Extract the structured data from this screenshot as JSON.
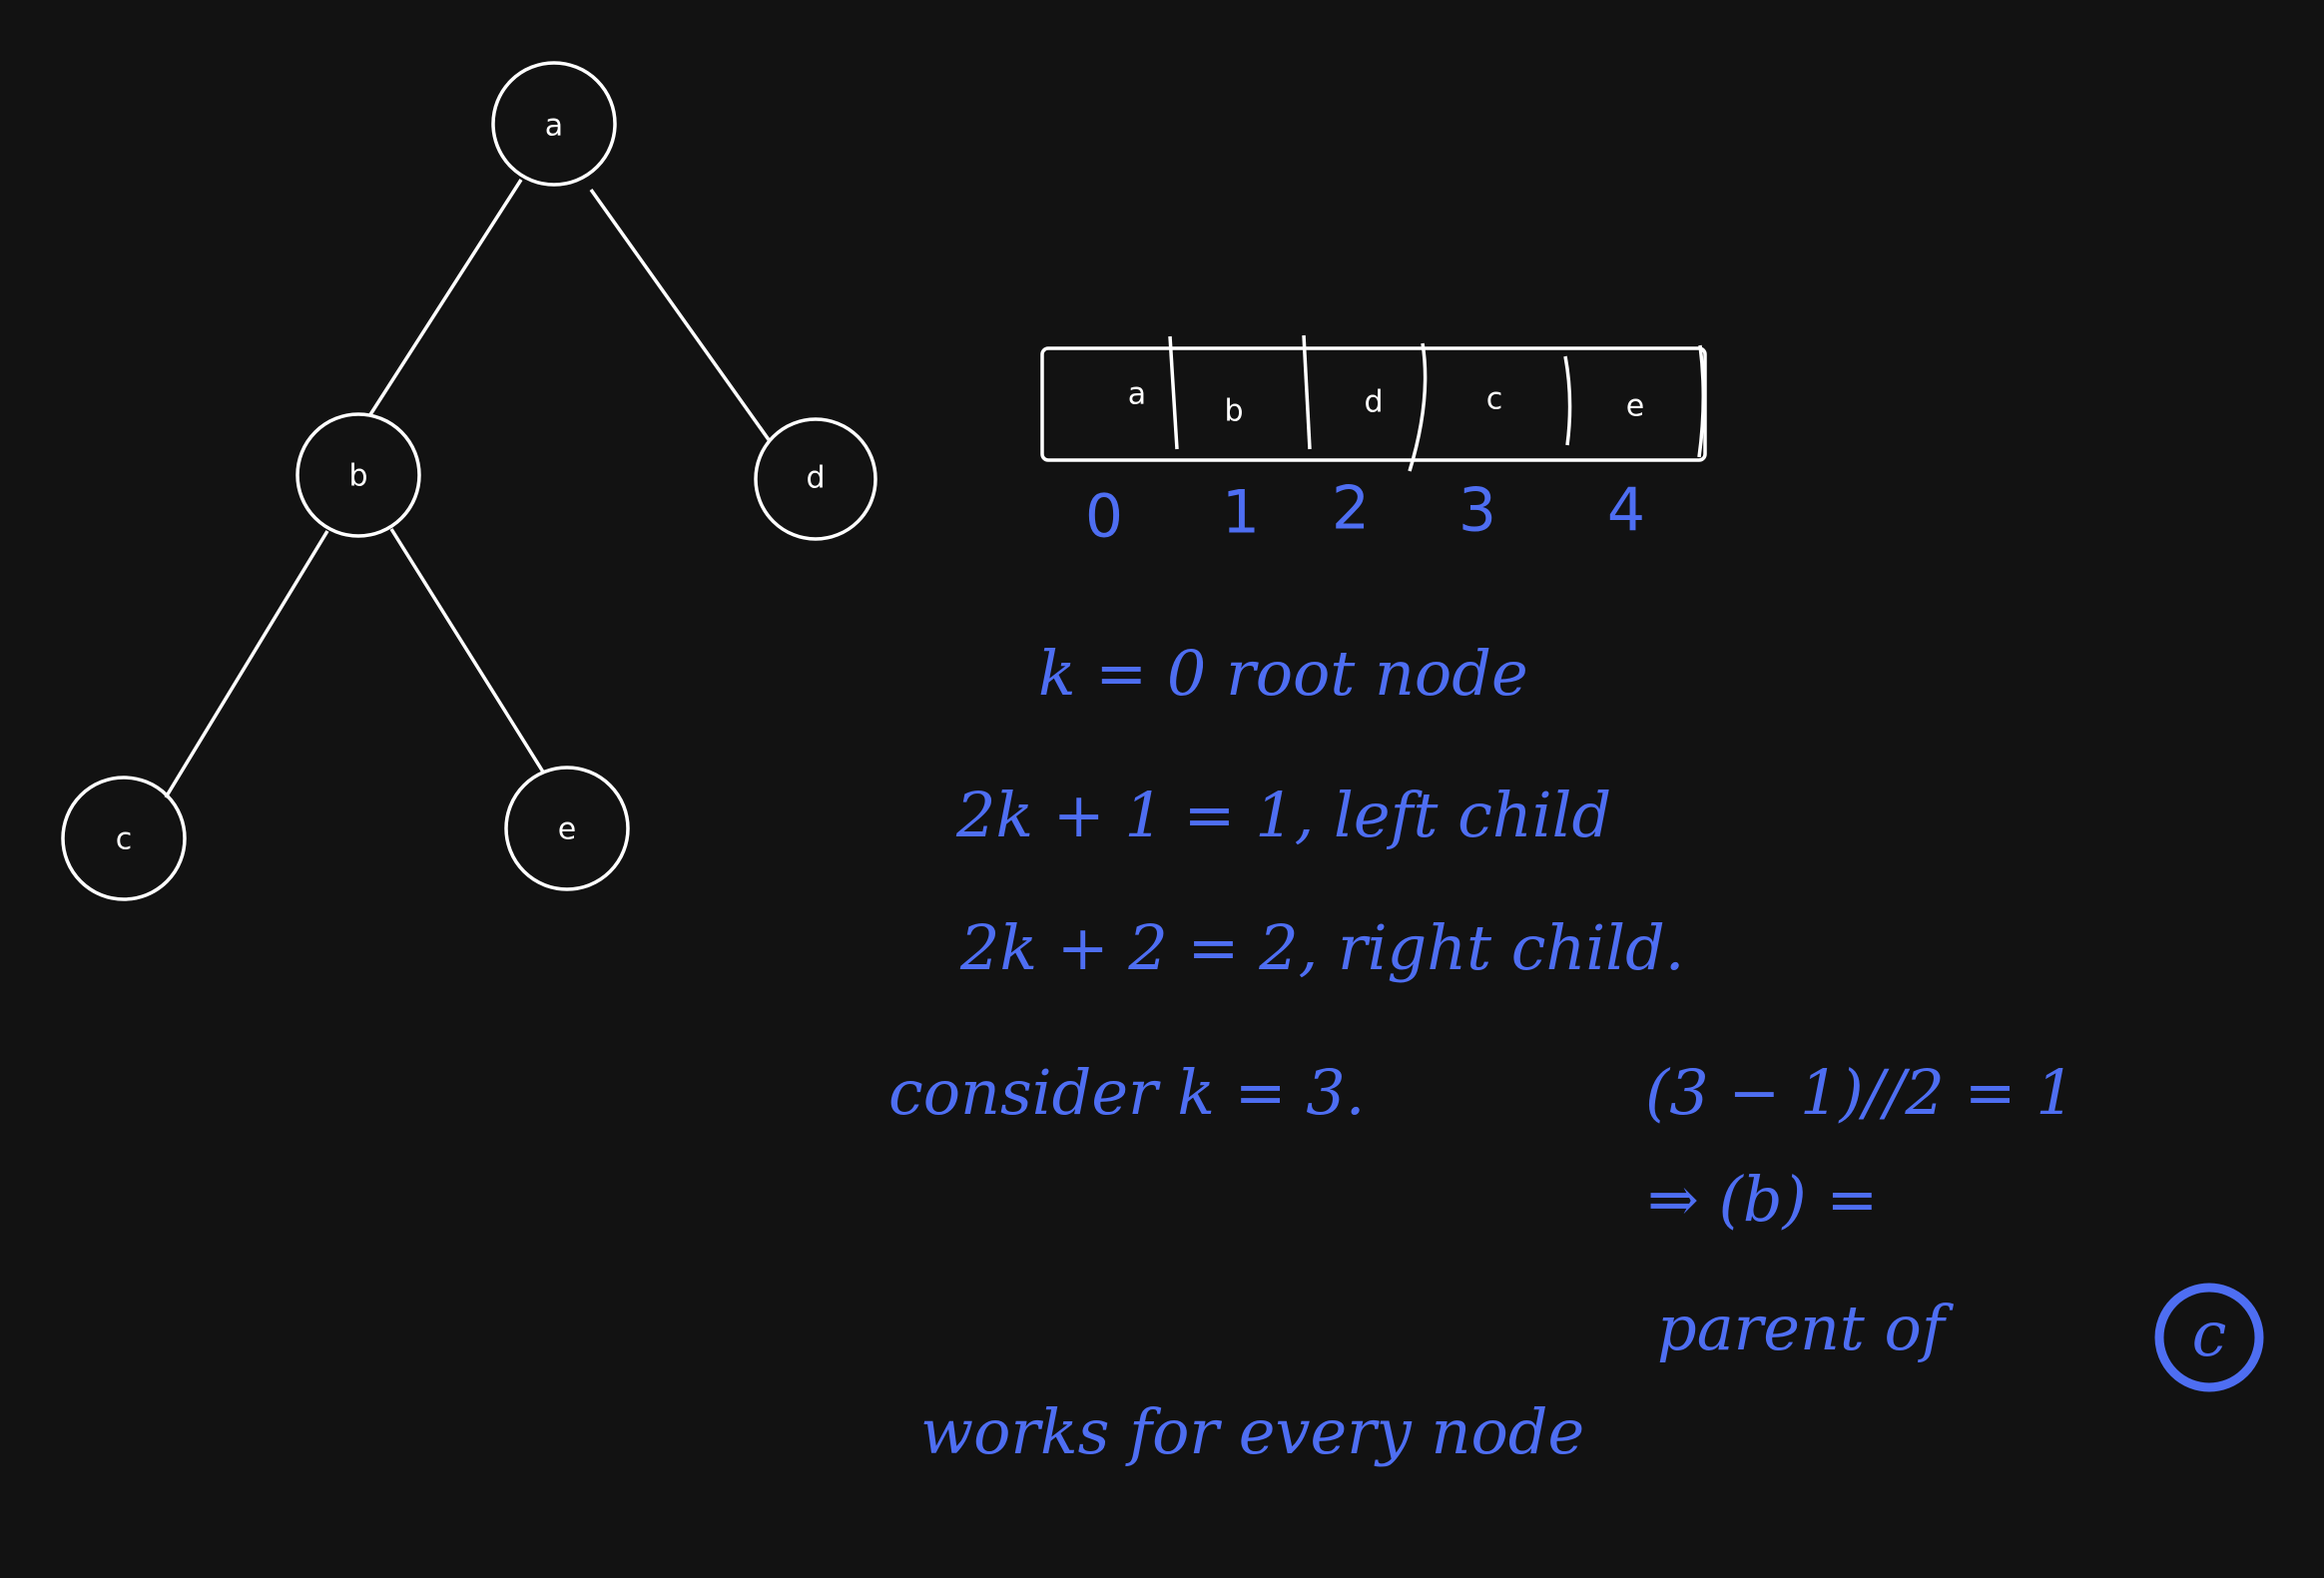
{
  "tree": {
    "nodes": [
      {
        "id": "a",
        "label": "a"
      },
      {
        "id": "b",
        "label": "b"
      },
      {
        "id": "d",
        "label": "d"
      },
      {
        "id": "c",
        "label": "c"
      },
      {
        "id": "e",
        "label": "e"
      }
    ],
    "edges": [
      [
        "a",
        "b"
      ],
      [
        "a",
        "d"
      ],
      [
        "b",
        "c"
      ],
      [
        "b",
        "e"
      ]
    ]
  },
  "array": {
    "cells": [
      "a",
      "b",
      "d",
      "c",
      "e"
    ],
    "indices": [
      "0",
      "1",
      "2",
      "3",
      "4"
    ]
  },
  "notes": {
    "line1": "k = 0   root node",
    "line2": "2k + 1 = 1, left child",
    "line3": "2k + 2 = 2, right child.",
    "line4a": "consider  k = 3.",
    "line4b": "(3 − 1)//2 = 1",
    "line5": "⇒ (b) =",
    "line6a": "parent of",
    "line6b": "c",
    "line7": "works for every  node"
  },
  "colors": {
    "background": "#121212",
    "ink_white": "#ffffff",
    "ink_blue": "#4e6ef2"
  }
}
